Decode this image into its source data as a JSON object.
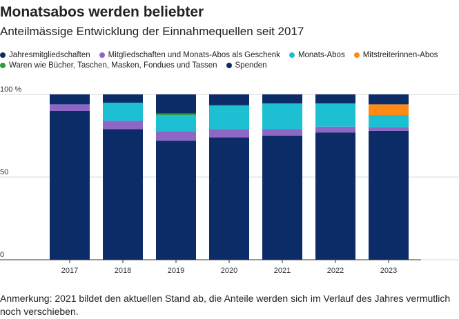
{
  "title": "Monatsabos werden beliebter",
  "subtitle": "Anteilmässige Entwicklung der Einnahmequellen seit 2017",
  "note": "Anmerkung: 2021 bildet den aktuellen Stand ab, die Anteile werden sich im Verlauf des Jahres vermutlich noch verschieben.",
  "colors": {
    "jahresmitgliedschaften": "#0b2c67",
    "geschenk": "#8e67c6",
    "monats_abos": "#1cc0d2",
    "mitstreiterinnen": "#ff8a14",
    "waren": "#2e9e3a",
    "spenden": "#0b2c67",
    "grid": "#d9d9d9",
    "axis_text": "#333333"
  },
  "chart_data": {
    "type": "bar",
    "stacked": true,
    "categories": [
      "2017",
      "2018",
      "2019",
      "2020",
      "2021",
      "2022",
      "2023"
    ],
    "ylim": [
      0,
      100
    ],
    "yticks": [
      {
        "value": 0,
        "label": "0"
      },
      {
        "value": 50,
        "label": "50"
      },
      {
        "value": 100,
        "label": "100 %"
      }
    ],
    "grid": true,
    "legend_position": "top",
    "series": [
      {
        "name": "Jahresmitgliedschaften",
        "color_key": "jahresmitgliedschaften",
        "values": [
          90,
          79,
          72,
          74,
          75,
          77,
          78
        ]
      },
      {
        "name": "Mitgliedschaften und Monats-Abos als Geschenk",
        "color_key": "geschenk",
        "values": [
          4,
          5,
          5.5,
          5,
          4,
          3.5,
          2
        ]
      },
      {
        "name": "Monats-Abos",
        "color_key": "monats_abos",
        "values": [
          0,
          11,
          10,
          14,
          15.5,
          14,
          7.5
        ]
      },
      {
        "name": "Mitstreiterinnen-Abos",
        "color_key": "mitstreiterinnen",
        "values": [
          0,
          0,
          0,
          0,
          0,
          0,
          6.5
        ]
      },
      {
        "name": "Waren wie Bücher, Taschen, Masken, Fondues und Tassen",
        "color_key": "waren",
        "values": [
          0,
          0,
          1,
          0.5,
          0,
          0,
          0
        ]
      },
      {
        "name": "Spenden",
        "color_key": "spenden",
        "values": [
          6,
          5,
          11.5,
          6.5,
          5.5,
          5.5,
          6
        ]
      }
    ]
  }
}
